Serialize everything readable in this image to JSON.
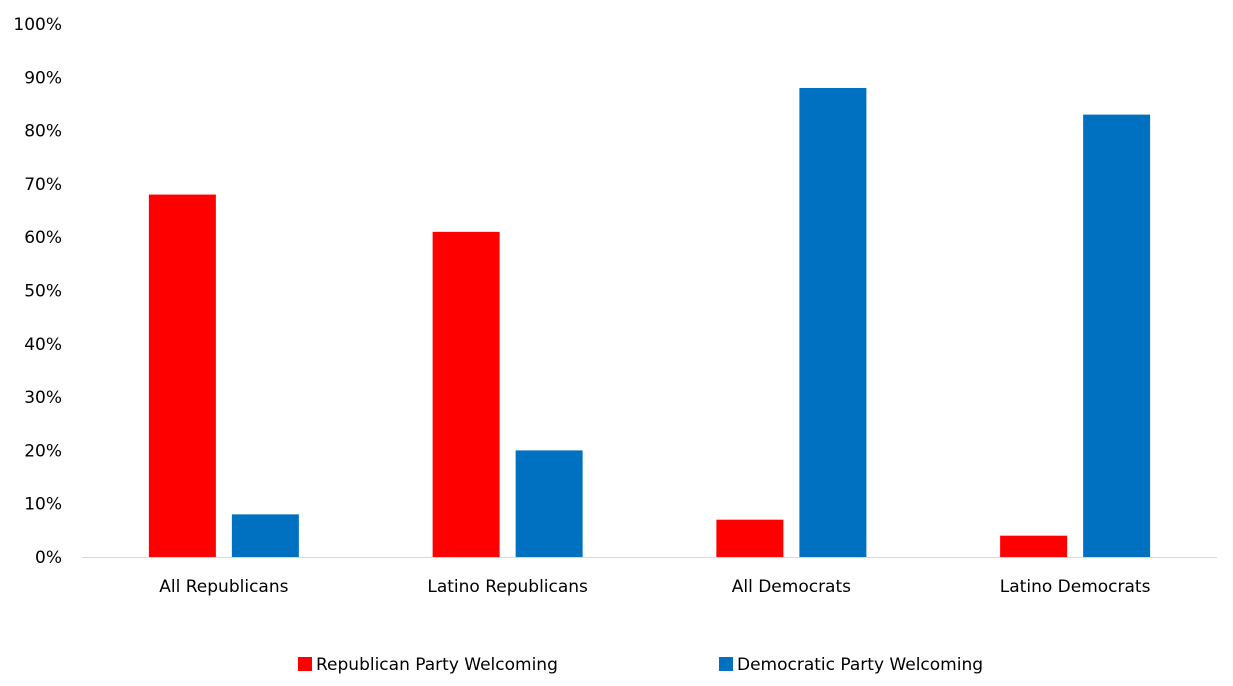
{
  "chart_data": {
    "type": "bar",
    "categories": [
      "All Republicans",
      "Latino Republicans",
      "All Democrats",
      "Latino Democrats"
    ],
    "series": [
      {
        "name": "Republican Party Welcoming",
        "color": "#ff0000",
        "values": [
          68,
          61,
          7,
          4
        ]
      },
      {
        "name": "Democratic Party Welcoming",
        "color": "#0070c0",
        "values": [
          8,
          20,
          88,
          83
        ]
      }
    ],
    "ylim": [
      0,
      100
    ],
    "yticks": [
      "0%",
      "10%",
      "20%",
      "30%",
      "40%",
      "50%",
      "60%",
      "70%",
      "80%",
      "90%",
      "100%"
    ],
    "unit": "%",
    "grid": false,
    "legend_position": "bottom"
  }
}
